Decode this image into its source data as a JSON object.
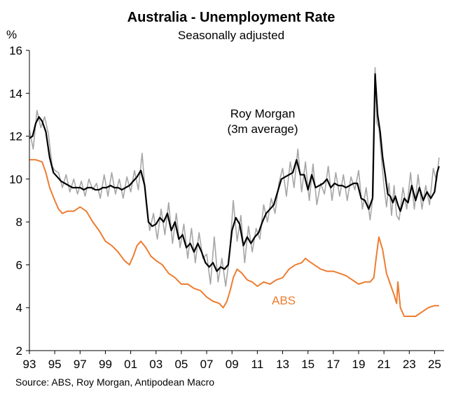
{
  "chart_data": {
    "type": "line",
    "title": "Australia - Unemployment Rate",
    "subtitle": "Seasonally adjusted",
    "ylabel": "%",
    "xlabel": "",
    "xlim": [
      1993,
      2025.75
    ],
    "ylim": [
      2,
      16
    ],
    "y_ticks": [
      2,
      4,
      6,
      8,
      10,
      12,
      14,
      16
    ],
    "x_ticks": [
      {
        "x": 1993,
        "label": "93"
      },
      {
        "x": 1995,
        "label": "95"
      },
      {
        "x": 1997,
        "label": "97"
      },
      {
        "x": 1999,
        "label": "99"
      },
      {
        "x": 2001,
        "label": "01"
      },
      {
        "x": 2003,
        "label": "03"
      },
      {
        "x": 2005,
        "label": "05"
      },
      {
        "x": 2007,
        "label": "07"
      },
      {
        "x": 2009,
        "label": "09"
      },
      {
        "x": 2011,
        "label": "11"
      },
      {
        "x": 2013,
        "label": "13"
      },
      {
        "x": 2015,
        "label": "15"
      },
      {
        "x": 2017,
        "label": "17"
      },
      {
        "x": 2019,
        "label": "19"
      },
      {
        "x": 2021,
        "label": "21"
      },
      {
        "x": 2023,
        "label": "23"
      },
      {
        "x": 2025,
        "label": "25"
      }
    ],
    "annotations": {
      "roy_morgan_line1": "Roy Morgan",
      "roy_morgan_line2": "(3m average)",
      "abs": "ABS"
    },
    "series": [
      {
        "name": "Roy Morgan",
        "color": "#a6a6a6",
        "x": [
          1993.0,
          1993.3,
          1993.6,
          1993.9,
          1994.2,
          1994.5,
          1994.8,
          1995.0,
          1995.3,
          1995.6,
          1995.9,
          1996.2,
          1996.5,
          1996.8,
          1997.1,
          1997.4,
          1997.7,
          1998.0,
          1998.3,
          1998.6,
          1998.9,
          1999.2,
          1999.5,
          1999.8,
          2000.1,
          2000.4,
          2000.7,
          2001.0,
          2001.3,
          2001.6,
          2001.9,
          2002.2,
          2002.5,
          2002.8,
          2003.1,
          2003.4,
          2003.7,
          2004.0,
          2004.3,
          2004.6,
          2004.9,
          2005.2,
          2005.5,
          2005.8,
          2006.1,
          2006.4,
          2006.7,
          2007.0,
          2007.3,
          2007.6,
          2007.9,
          2008.2,
          2008.5,
          2008.8,
          2009.1,
          2009.4,
          2009.7,
          2010.0,
          2010.3,
          2010.6,
          2010.9,
          2011.2,
          2011.5,
          2011.8,
          2012.1,
          2012.4,
          2012.7,
          2013.0,
          2013.3,
          2013.6,
          2013.9,
          2014.2,
          2014.5,
          2014.8,
          2015.1,
          2015.4,
          2015.7,
          2016.0,
          2016.3,
          2016.6,
          2016.9,
          2017.2,
          2017.5,
          2017.8,
          2018.1,
          2018.4,
          2018.7,
          2019.0,
          2019.3,
          2019.6,
          2019.9,
          2020.15,
          2020.3,
          2020.45,
          2020.6,
          2020.8,
          2021.0,
          2021.2,
          2021.4,
          2021.6,
          2021.8,
          2022.0,
          2022.2,
          2022.5,
          2022.8,
          2023.1,
          2023.4,
          2023.7,
          2024.0,
          2024.3,
          2024.6,
          2024.9,
          2025.15,
          2025.35
        ],
        "values": [
          12.3,
          11.4,
          13.2,
          12.4,
          12.9,
          12.1,
          10.6,
          10.4,
          10.3,
          9.6,
          10.2,
          9.4,
          10.0,
          9.3,
          9.9,
          9.2,
          10.0,
          9.5,
          9.8,
          9.1,
          10.2,
          9.2,
          10.3,
          9.3,
          10.0,
          9.1,
          10.1,
          9.4,
          10.4,
          9.5,
          11.2,
          9.0,
          7.6,
          8.4,
          7.2,
          8.6,
          7.4,
          8.9,
          7.0,
          8.4,
          6.8,
          7.9,
          6.3,
          7.7,
          6.1,
          7.5,
          6.3,
          6.5,
          5.1,
          7.3,
          5.2,
          6.3,
          5.0,
          6.4,
          9.0,
          7.1,
          8.3,
          6.1,
          7.8,
          6.6,
          7.7,
          7.2,
          8.8,
          8.0,
          9.1,
          8.4,
          9.8,
          10.5,
          9.2,
          10.8,
          9.6,
          11.4,
          9.4,
          10.8,
          9.0,
          10.7,
          8.8,
          9.8,
          9.3,
          10.6,
          9.0,
          10.3,
          9.2,
          10.2,
          9.0,
          10.1,
          9.5,
          10.4,
          8.6,
          9.6,
          8.1,
          9.3,
          15.2,
          12.6,
          12.4,
          11.0,
          9.7,
          8.7,
          9.8,
          8.3,
          9.7,
          8.3,
          8.1,
          9.6,
          8.6,
          10.3,
          8.6,
          10.2,
          8.6,
          9.7,
          8.8,
          10.5,
          9.9,
          11.0
        ]
      },
      {
        "name": "Roy Morgan (3m average)",
        "color": "#000000",
        "x": [
          1993.0,
          1993.25,
          1993.5,
          1993.75,
          1994.0,
          1994.3,
          1994.6,
          1994.9,
          1995.2,
          1995.5,
          1995.8,
          1996.1,
          1996.4,
          1996.7,
          1997.0,
          1997.3,
          1997.6,
          1997.9,
          1998.2,
          1998.5,
          1998.8,
          1999.1,
          1999.4,
          1999.7,
          2000.0,
          2000.3,
          2000.6,
          2000.9,
          2001.2,
          2001.5,
          2001.8,
          2002.1,
          2002.4,
          2002.7,
          2003.0,
          2003.3,
          2003.6,
          2003.9,
          2004.2,
          2004.5,
          2004.8,
          2005.1,
          2005.4,
          2005.7,
          2006.0,
          2006.3,
          2006.6,
          2006.9,
          2007.2,
          2007.5,
          2007.8,
          2008.1,
          2008.4,
          2008.7,
          2009.0,
          2009.3,
          2009.6,
          2009.9,
          2010.2,
          2010.5,
          2010.8,
          2011.1,
          2011.4,
          2011.7,
          2012.0,
          2012.3,
          2012.6,
          2012.9,
          2013.2,
          2013.5,
          2013.8,
          2014.1,
          2014.4,
          2014.7,
          2015.0,
          2015.3,
          2015.6,
          2015.9,
          2016.2,
          2016.5,
          2016.8,
          2017.1,
          2017.4,
          2017.7,
          2018.0,
          2018.3,
          2018.6,
          2018.9,
          2019.2,
          2019.5,
          2019.8,
          2020.1,
          2020.3,
          2020.5,
          2020.7,
          2020.9,
          2021.1,
          2021.3,
          2021.5,
          2021.7,
          2021.9,
          2022.1,
          2022.3,
          2022.6,
          2022.9,
          2023.2,
          2023.5,
          2023.8,
          2024.1,
          2024.4,
          2024.7,
          2025.0,
          2025.2,
          2025.35
        ],
        "values": [
          11.9,
          12.0,
          12.6,
          12.9,
          12.7,
          12.2,
          11.0,
          10.3,
          10.1,
          9.9,
          9.8,
          9.7,
          9.6,
          9.6,
          9.6,
          9.5,
          9.6,
          9.6,
          9.5,
          9.5,
          9.6,
          9.6,
          9.7,
          9.6,
          9.6,
          9.5,
          9.6,
          9.7,
          9.9,
          10.1,
          10.4,
          9.7,
          8.0,
          7.8,
          7.9,
          8.2,
          8.0,
          8.4,
          7.6,
          8.0,
          7.2,
          7.4,
          6.8,
          7.0,
          6.6,
          7.0,
          6.6,
          6.1,
          5.9,
          6.1,
          5.7,
          5.9,
          5.8,
          6.0,
          7.6,
          8.2,
          7.9,
          6.9,
          7.3,
          7.0,
          7.3,
          7.5,
          8.0,
          8.4,
          8.6,
          8.8,
          9.4,
          10.0,
          10.1,
          10.2,
          10.3,
          10.9,
          10.2,
          10.2,
          9.5,
          10.2,
          9.6,
          9.7,
          9.8,
          10.0,
          9.6,
          9.8,
          9.7,
          9.7,
          9.6,
          9.7,
          9.8,
          9.8,
          9.1,
          9.0,
          8.6,
          9.1,
          14.9,
          13.0,
          12.2,
          11.0,
          10.2,
          9.3,
          9.2,
          8.9,
          9.2,
          8.8,
          8.5,
          9.1,
          8.9,
          9.7,
          9.0,
          9.6,
          9.0,
          9.4,
          9.1,
          9.4,
          10.3,
          10.6
        ]
      },
      {
        "name": "ABS",
        "color": "#ed7d31",
        "x": [
          1993.0,
          1993.5,
          1994.0,
          1994.3,
          1994.6,
          1995.0,
          1995.3,
          1995.6,
          1996.0,
          1996.5,
          1997.0,
          1997.5,
          1998.0,
          1998.5,
          1999.0,
          1999.5,
          2000.0,
          2000.5,
          2000.9,
          2001.2,
          2001.5,
          2001.8,
          2002.2,
          2002.6,
          2003.0,
          2003.5,
          2004.0,
          2004.5,
          2005.0,
          2005.5,
          2006.0,
          2006.5,
          2007.0,
          2007.5,
          2008.0,
          2008.3,
          2008.6,
          2008.9,
          2009.1,
          2009.4,
          2009.8,
          2010.2,
          2010.6,
          2011.0,
          2011.5,
          2012.0,
          2012.5,
          2013.0,
          2013.5,
          2014.0,
          2014.5,
          2014.8,
          2015.0,
          2015.5,
          2016.0,
          2016.5,
          2017.0,
          2017.5,
          2018.0,
          2018.5,
          2019.0,
          2019.5,
          2019.9,
          2020.2,
          2020.4,
          2020.6,
          2020.9,
          2021.2,
          2021.5,
          2021.8,
          2022.0,
          2022.1,
          2022.3,
          2022.6,
          2023.0,
          2023.5,
          2024.0,
          2024.5,
          2025.0,
          2025.35
        ],
        "values": [
          10.9,
          10.9,
          10.8,
          10.3,
          9.6,
          9.0,
          8.6,
          8.4,
          8.5,
          8.5,
          8.7,
          8.5,
          8.0,
          7.6,
          7.1,
          6.9,
          6.6,
          6.2,
          6.0,
          6.4,
          6.9,
          7.1,
          6.8,
          6.4,
          6.2,
          6.0,
          5.6,
          5.4,
          5.1,
          5.1,
          4.9,
          4.8,
          4.5,
          4.3,
          4.2,
          4.0,
          4.3,
          4.9,
          5.4,
          5.8,
          5.6,
          5.3,
          5.2,
          5.0,
          5.2,
          5.1,
          5.3,
          5.4,
          5.8,
          6.0,
          6.1,
          6.3,
          6.2,
          6.0,
          5.8,
          5.7,
          5.7,
          5.6,
          5.5,
          5.3,
          5.1,
          5.2,
          5.2,
          5.4,
          6.4,
          7.3,
          6.7,
          5.6,
          5.1,
          4.6,
          4.2,
          5.2,
          4.0,
          3.6,
          3.6,
          3.6,
          3.8,
          4.0,
          4.1,
          4.1
        ]
      }
    ],
    "source": "Source: ABS, Roy Morgan, Antipodean Macro"
  }
}
